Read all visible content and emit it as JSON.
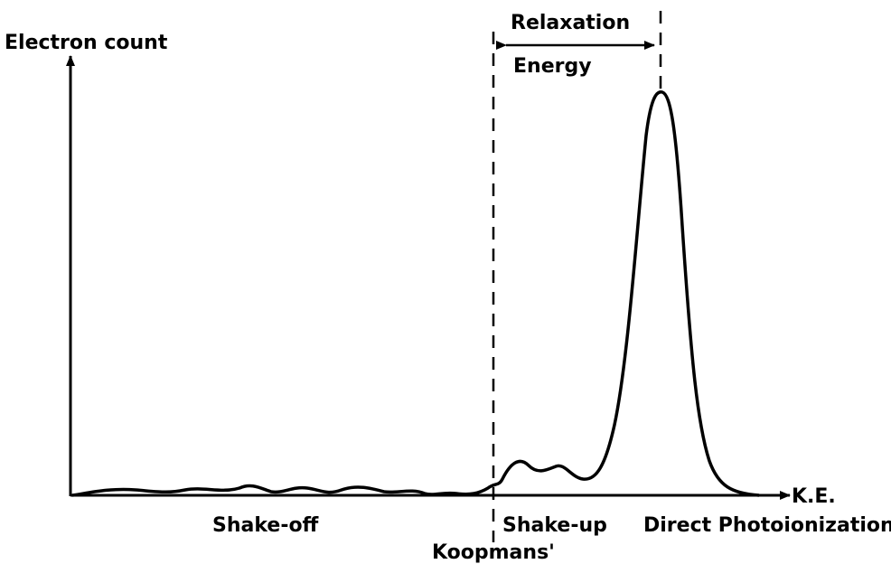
{
  "axes": {
    "y_label": "Electron count",
    "x_label": "K.E."
  },
  "annotations": {
    "relaxation_top": "Relaxation",
    "relaxation_bottom": "Energy",
    "koopmans": "Koopmans'"
  },
  "regions": [
    "Shake-off",
    "Shake-up",
    "Direct Photoionization"
  ]
}
